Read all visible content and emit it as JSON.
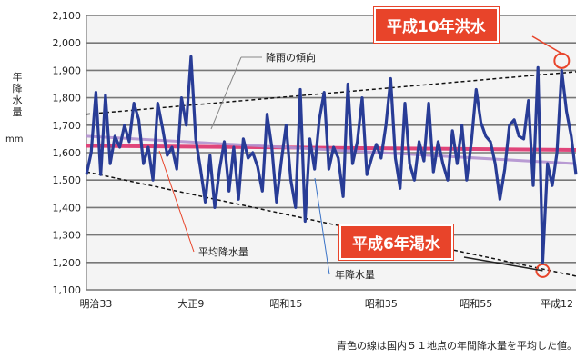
{
  "y_axis_label": "年降水量",
  "unit": "mm",
  "caption": "青色の線は国内５１地点の年間降水量を平均した値。",
  "callouts": {
    "flood": "平成10年洪水",
    "drought": "平成6年渇水"
  },
  "annotations": {
    "trend": "降雨の傾向",
    "average": "平均降水量",
    "annual": "年降水量"
  },
  "colors": {
    "series": "#283c96",
    "average": "#e0457a",
    "trend_avg": "#b392d0",
    "callout": "#e8442a",
    "grid": "#777777",
    "plot_bg": "#f4f4f4"
  },
  "chart_data": {
    "type": "line",
    "ylim": [
      1100,
      2100
    ],
    "yticks": [
      1100,
      1200,
      1300,
      1400,
      1500,
      1600,
      1700,
      1800,
      1900,
      2000,
      2100
    ],
    "ytick_labels": [
      "1,100",
      "1,200",
      "1,300",
      "1,400",
      "1,500",
      "1,600",
      "1,700",
      "1,800",
      "1,900",
      "2,000",
      "2,100"
    ],
    "x_start": 1898,
    "x_end": 2001,
    "x_ticks": [
      {
        "year": 1900,
        "label": "明治33"
      },
      {
        "year": 1920,
        "label": "大正9"
      },
      {
        "year": 1940,
        "label": "昭和15"
      },
      {
        "year": 1960,
        "label": "昭和35"
      },
      {
        "year": 1980,
        "label": "昭和55"
      },
      {
        "year": 2000,
        "label": "平成12"
      }
    ],
    "series": [
      {
        "name": "年降水量",
        "x": [
          1898,
          1899,
          1900,
          1901,
          1902,
          1903,
          1904,
          1905,
          1906,
          1907,
          1908,
          1909,
          1910,
          1911,
          1912,
          1913,
          1914,
          1915,
          1916,
          1917,
          1918,
          1919,
          1920,
          1921,
          1922,
          1923,
          1924,
          1925,
          1926,
          1927,
          1928,
          1929,
          1930,
          1931,
          1932,
          1933,
          1934,
          1935,
          1936,
          1937,
          1938,
          1939,
          1940,
          1941,
          1942,
          1943,
          1944,
          1945,
          1946,
          1947,
          1948,
          1949,
          1950,
          1951,
          1952,
          1953,
          1954,
          1955,
          1956,
          1957,
          1958,
          1959,
          1960,
          1961,
          1962,
          1963,
          1964,
          1965,
          1966,
          1967,
          1968,
          1969,
          1970,
          1971,
          1972,
          1973,
          1974,
          1975,
          1976,
          1977,
          1978,
          1979,
          1980,
          1981,
          1982,
          1983,
          1984,
          1985,
          1986,
          1987,
          1988,
          1989,
          1990,
          1991,
          1992,
          1993,
          1994,
          1995,
          1996,
          1997,
          1998,
          1999,
          2000,
          2001
        ],
        "y": [
          1520,
          1600,
          1820,
          1520,
          1810,
          1560,
          1660,
          1620,
          1700,
          1640,
          1780,
          1720,
          1560,
          1620,
          1500,
          1780,
          1690,
          1590,
          1620,
          1540,
          1800,
          1700,
          1950,
          1650,
          1540,
          1420,
          1590,
          1400,
          1540,
          1640,
          1460,
          1620,
          1430,
          1650,
          1580,
          1600,
          1550,
          1460,
          1740,
          1620,
          1420,
          1570,
          1700,
          1500,
          1400,
          1830,
          1350,
          1650,
          1540,
          1720,
          1820,
          1540,
          1620,
          1580,
          1440,
          1850,
          1560,
          1640,
          1800,
          1520,
          1580,
          1630,
          1580,
          1700,
          1870,
          1580,
          1470,
          1780,
          1560,
          1500,
          1640,
          1570,
          1780,
          1530,
          1640,
          1560,
          1500,
          1680,
          1560,
          1700,
          1500,
          1640,
          1830,
          1710,
          1660,
          1640,
          1560,
          1430,
          1540,
          1700,
          1720,
          1660,
          1650,
          1790,
          1480,
          1910,
          1200,
          1560,
          1480,
          1600,
          1900,
          1750,
          1660,
          1520
        ]
      },
      {
        "name": "平均降水量",
        "x": [
          1898,
          2001
        ],
        "y": [
          1625,
          1610
        ]
      }
    ],
    "trend_upper": {
      "x": [
        1898,
        2001
      ],
      "y": [
        1740,
        1895
      ]
    },
    "trend_lower": {
      "x": [
        1898,
        2001
      ],
      "y": [
        1530,
        1150
      ]
    },
    "trend_average": {
      "x": [
        1898,
        2001
      ],
      "y": [
        1660,
        1560
      ]
    }
  }
}
